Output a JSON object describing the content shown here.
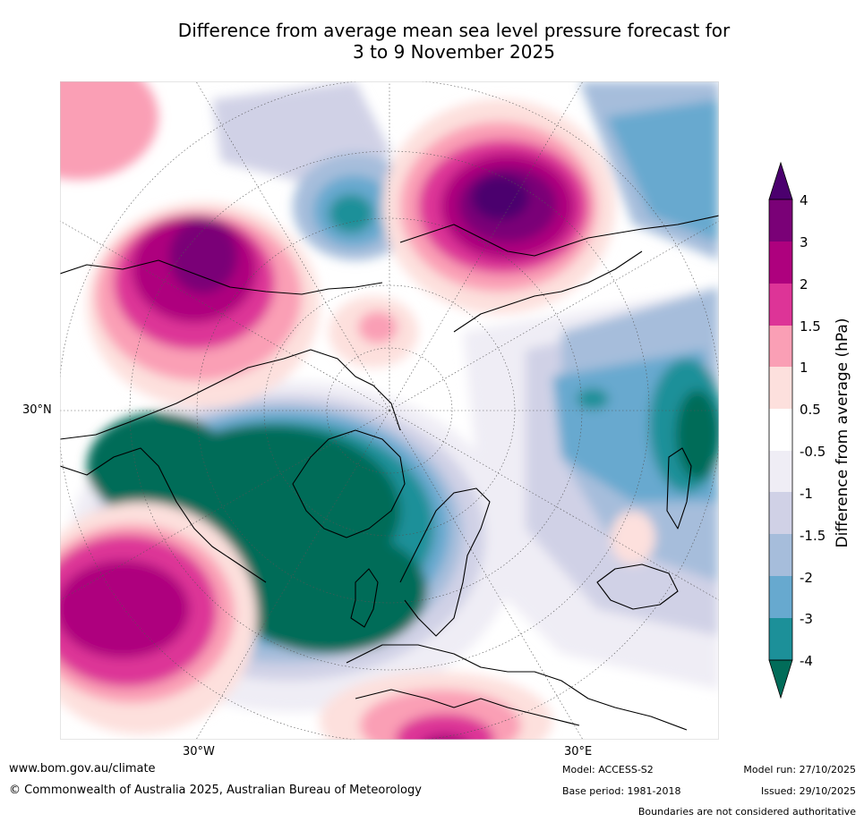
{
  "title": {
    "line1": "Difference from average mean sea level pressure forecast for",
    "line2": "3 to 9 November 2025"
  },
  "axis_labels": {
    "lat_30n": "30°N",
    "lon_30w": "30°W",
    "lon_30e": "30°E"
  },
  "colorbar": {
    "title": "Difference from average (hPa)",
    "ticks": [
      "4",
      "3",
      "2",
      "1.5",
      "1",
      "0.5",
      "-0.5",
      "-1",
      "-1.5",
      "-2",
      "-3",
      "-4"
    ],
    "colors": {
      "gt4": "#4b006e",
      "c3_4": "#7a0177",
      "c2_3": "#ae017e",
      "c15_2": "#dd3497",
      "c1_15": "#fa9fb5",
      "c05_1": "#fde0dd",
      "neutral": "#ffffff",
      "n05_1": "#efedf5",
      "n1_15": "#d0d1e6",
      "n15_2": "#a6bddb",
      "n2_3": "#67a9cf",
      "n3_4": "#1c9099",
      "lt4": "#016c59"
    }
  },
  "footer": {
    "url": "www.bom.gov.au/climate",
    "copyright": "© Commonwealth of Australia 2025, Australian Bureau of Meteorology",
    "model": "Model: ACCESS-S2",
    "base_period": "Base period: 1981-2018",
    "model_run": "Model run: 27/10/2025",
    "issued": "Issued: 29/10/2025",
    "disclaimer": "Boundaries are not considered authoritative"
  }
}
